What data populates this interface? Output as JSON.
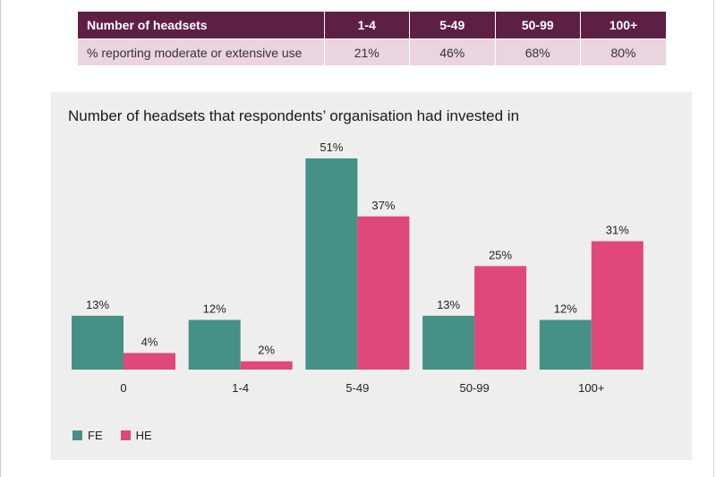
{
  "table": {
    "header": [
      "Number of headsets",
      "1-4",
      "5-49",
      "50-99",
      "100+"
    ],
    "row": [
      "% reporting moderate or extensive use",
      "21%",
      "46%",
      "68%",
      "80%"
    ]
  },
  "colors": {
    "table_header_bg": "#5e1f45",
    "table_row_bg": "#ead4de",
    "FE": "#469186",
    "HE": "#e0477a"
  },
  "chart_data": {
    "type": "bar",
    "title": "Number of headsets that respondents’ organisation had invested in",
    "categories": [
      "0",
      "1-4",
      "5-49",
      "50-99",
      "100+"
    ],
    "series": [
      {
        "name": "FE",
        "values": [
          13,
          12,
          51,
          13,
          12
        ],
        "labels": [
          "13%",
          "12%",
          "51%",
          "13%",
          "12%"
        ]
      },
      {
        "name": "HE",
        "values": [
          4,
          2,
          37,
          25,
          31
        ],
        "labels": [
          "4%",
          "2%",
          "37%",
          "25%",
          "31%"
        ]
      }
    ],
    "xlabel": "",
    "ylabel": "",
    "ylim": [
      0,
      51
    ],
    "grid": false,
    "legend": "bottom-left"
  }
}
